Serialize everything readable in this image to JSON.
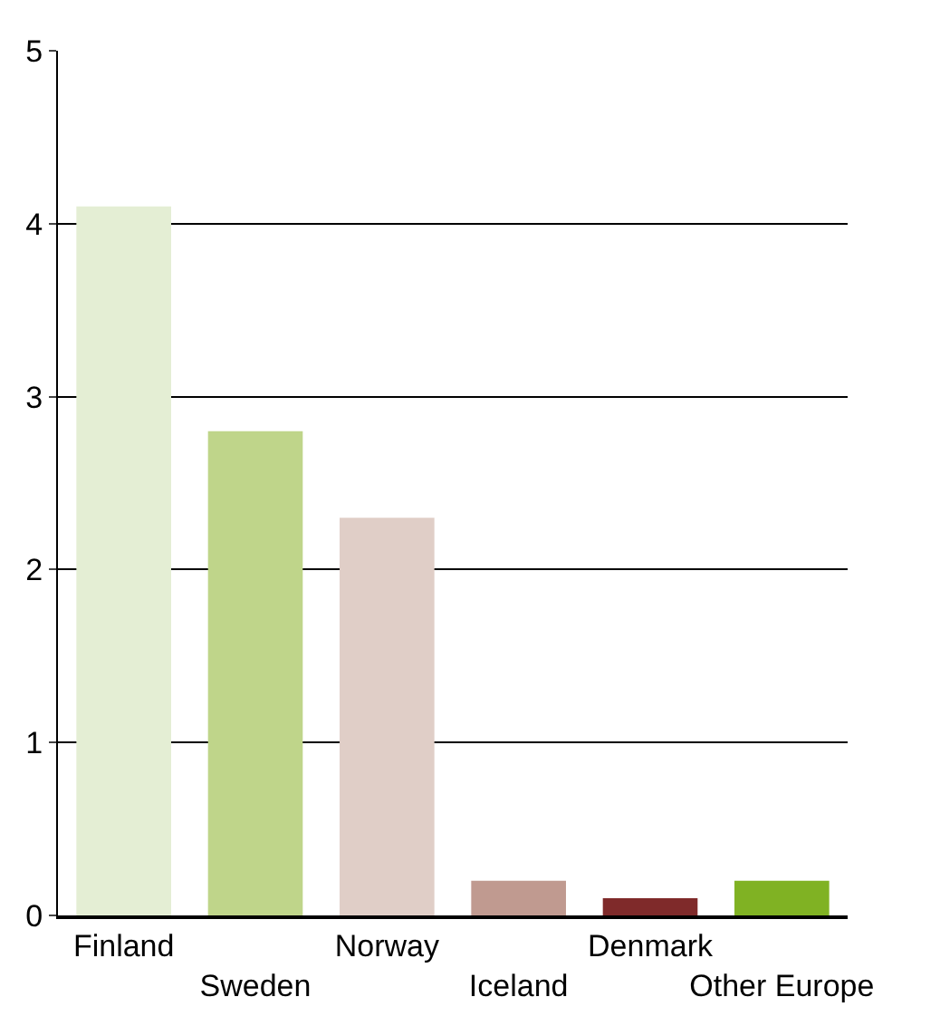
{
  "chart_data": {
    "type": "bar",
    "categories": [
      "Finland",
      "Sweden",
      "Norway",
      "Iceland",
      "Denmark",
      "Other Europe"
    ],
    "values": [
      4.1,
      2.8,
      2.3,
      0.2,
      0.1,
      0.2
    ],
    "colors": [
      "#e4eed4",
      "#bfd58a",
      "#e0cec7",
      "#c09a90",
      "#7f2a2a",
      "#80b223"
    ],
    "ylim": [
      0,
      5
    ],
    "yticks": [
      0,
      1,
      2,
      3,
      4,
      5
    ],
    "grid": "y"
  }
}
